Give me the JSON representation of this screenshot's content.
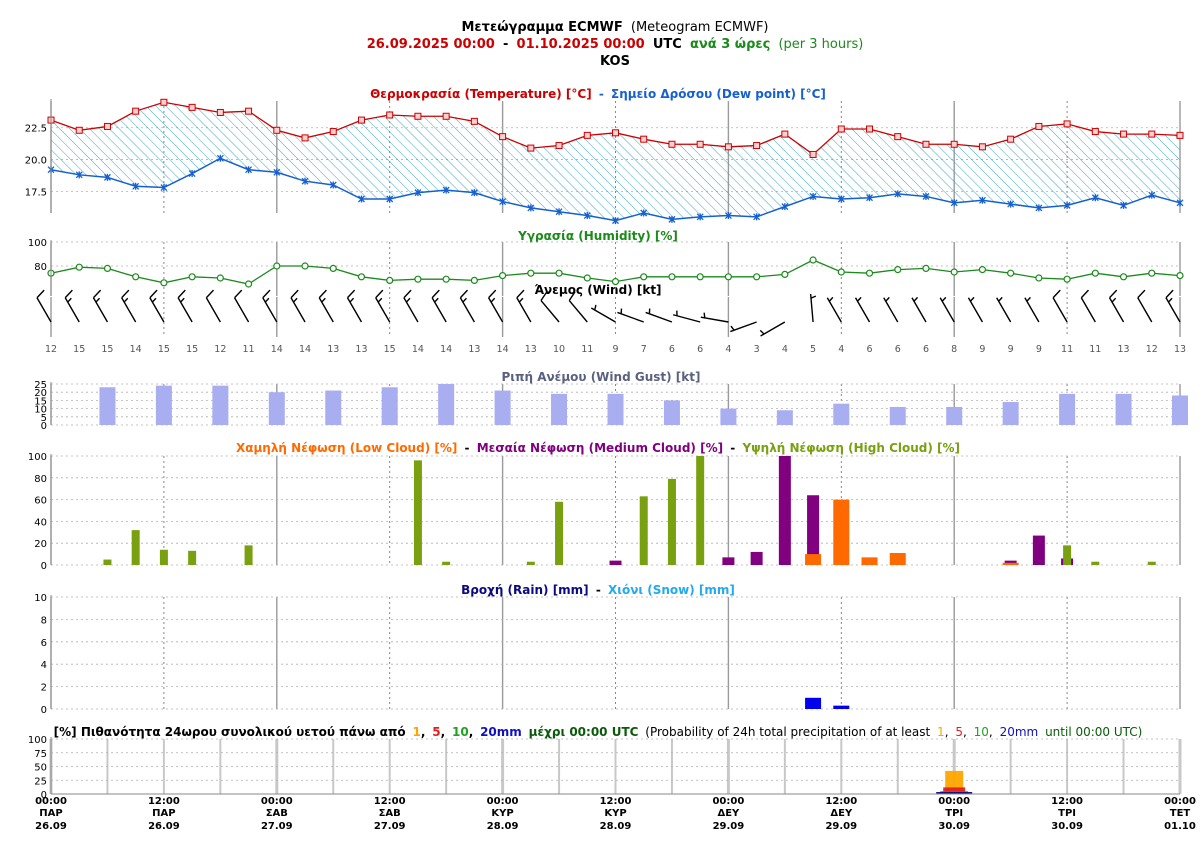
{
  "header": {
    "line1_bold": "Μετεώγραμμα ECMWF",
    "line1_normal": "(Meteogram ECMWF)",
    "line2_start": "26.09.2025 00:00",
    "line2_dash": "-",
    "line2_end": "01.10.2025 00:00",
    "line2_utc": "UTC",
    "line2_step_gr": "ανά 3 ώρες",
    "line2_step_en": "(per 3 hours)",
    "station": "KOS"
  },
  "colors": {
    "temp": "#cc0000",
    "dew": "#1560d0",
    "hum": "#1a8a1a",
    "gust": "#a8aef0",
    "low": "#ff6a00",
    "med": "#800080",
    "high": "#78a010",
    "rain": "#0000ee",
    "snow": "#22aaee",
    "grid": "#b0b0b0"
  },
  "chart_data": [
    {
      "type": "line",
      "name": "temperature_dewpoint",
      "title_gr_a": "Θερμοκρασία (Temperature) [°C]",
      "title_sep": "-",
      "title_gr_b": "Σημείο Δρόσου (Dew point) [°C]",
      "ylim": [
        15.8,
        24.6
      ],
      "yticks": [
        "22.5",
        "20.0",
        "17.5"
      ],
      "ytick_values": [
        22.5,
        20.0,
        17.5
      ],
      "series": [
        {
          "name": "Θερμοκρασία (Temperature) [°C]",
          "values": [
            23.1,
            22.3,
            22.6,
            23.8,
            24.5,
            24.1,
            23.7,
            23.8,
            22.3,
            21.7,
            22.2,
            23.1,
            23.5,
            23.4,
            23.4,
            23.0,
            21.8,
            20.9,
            21.1,
            21.9,
            22.1,
            21.6,
            21.2,
            21.2,
            21.0,
            21.1,
            22.0,
            20.4,
            22.4,
            22.4,
            21.8,
            21.2,
            21.2,
            21.0,
            21.6,
            22.6,
            22.8,
            22.2,
            22.0,
            22.0,
            21.9
          ]
        },
        {
          "name": "Σημείο Δρόσου (Dew point) [°C]",
          "values": [
            19.2,
            18.8,
            18.6,
            17.9,
            17.8,
            18.9,
            20.1,
            19.2,
            19.0,
            18.3,
            18.0,
            16.9,
            16.9,
            17.4,
            17.6,
            17.4,
            16.7,
            16.2,
            15.9,
            15.6,
            15.2,
            15.8,
            15.3,
            15.5,
            15.6,
            15.5,
            16.3,
            17.1,
            16.9,
            17.0,
            17.3,
            17.1,
            16.6,
            16.8,
            16.5,
            16.2,
            16.4,
            17.0,
            16.4,
            17.2,
            16.6
          ]
        }
      ]
    },
    {
      "type": "line",
      "name": "humidity",
      "title": "Υγρασία (Humidity) [%]",
      "ylim": [
        55,
        100
      ],
      "yticks": [
        "100",
        "80"
      ],
      "ytick_values": [
        100,
        80
      ],
      "values": [
        74,
        79,
        78,
        71,
        66,
        71,
        70,
        65,
        80,
        80,
        78,
        71,
        68,
        69,
        69,
        68,
        72,
        74,
        74,
        70,
        67,
        71,
        71,
        71,
        71,
        71,
        73,
        85,
        75,
        74,
        77,
        78,
        75,
        77,
        74,
        70,
        69,
        74,
        71,
        74,
        72
      ]
    },
    {
      "type": "wind",
      "title": "Άνεμος (Wind) [kt]",
      "speeds": [
        "12",
        "15",
        "15",
        "14",
        "15",
        "15",
        "12",
        "11",
        "14",
        "14",
        "13",
        "13",
        "15",
        "14",
        "14",
        "13",
        "14",
        "13",
        "10",
        "11",
        "9",
        "7",
        "6",
        "6",
        "4",
        "3",
        "4",
        "5",
        "4",
        "6",
        "6",
        "6",
        "8",
        "9",
        "9",
        "9",
        "11",
        "11",
        "13",
        "12",
        "13"
      ],
      "directions_deg": [
        330,
        330,
        330,
        330,
        330,
        330,
        330,
        330,
        330,
        330,
        330,
        330,
        330,
        330,
        330,
        330,
        330,
        330,
        320,
        320,
        300,
        290,
        290,
        285,
        280,
        250,
        240,
        355,
        330,
        330,
        330,
        330,
        330,
        330,
        330,
        330,
        330,
        330,
        330,
        330,
        330
      ]
    },
    {
      "type": "bar",
      "name": "wind_gust",
      "title": "Ριπή Ανέμου (Wind Gust) [kt]",
      "ylim": [
        0,
        25
      ],
      "yticks": [
        "25",
        "20",
        "15",
        "10",
        "5",
        "0"
      ],
      "ytick_values": [
        25,
        20,
        15,
        10,
        5,
        0
      ],
      "values": [
        null,
        23,
        24,
        24,
        20,
        21,
        23,
        25,
        21,
        19,
        19,
        15,
        10,
        9,
        13,
        11,
        11,
        14,
        19,
        19,
        18
      ]
    },
    {
      "type": "bar",
      "name": "clouds",
      "title_low": "Χαμηλή Νέφωση (Low Cloud) [%]",
      "title_med": "Μεσαία Νέφωση (Medium Cloud) [%]",
      "title_high": "Υψηλή Νέφωση (High Cloud) [%]",
      "title_sep": "-",
      "ylim": [
        0,
        100
      ],
      "yticks": [
        "100",
        "80",
        "60",
        "40",
        "20",
        "0"
      ],
      "ytick_values": [
        100,
        80,
        60,
        40,
        20,
        0
      ],
      "series": [
        {
          "name": "Χαμηλή Νέφωση (Low Cloud) [%]",
          "values": [
            0,
            0,
            0,
            0,
            0,
            0,
            0,
            0,
            0,
            0,
            0,
            0,
            0,
            0,
            0,
            0,
            0,
            0,
            0,
            0,
            0,
            0,
            0,
            0,
            0,
            0,
            0,
            10,
            60,
            7,
            11,
            0,
            0,
            0,
            2,
            0,
            0,
            0,
            0,
            0,
            0
          ]
        },
        {
          "name": "Μεσαία Νέφωση (Medium Cloud) [%]",
          "values": [
            0,
            0,
            0,
            0,
            0,
            0,
            0,
            0,
            0,
            0,
            0,
            0,
            0,
            0,
            0,
            0,
            0,
            0,
            0,
            0,
            4,
            0,
            0,
            0,
            7,
            12,
            100,
            64,
            34,
            0,
            0,
            0,
            0,
            0,
            4,
            27,
            6,
            0,
            0,
            0,
            0
          ]
        },
        {
          "name": "Υψηλή Νέφωση (High Cloud) [%]",
          "values": [
            0,
            0,
            5,
            32,
            14,
            13,
            0,
            18,
            0,
            0,
            0,
            0,
            0,
            96,
            3,
            0,
            0,
            3,
            58,
            0,
            0,
            63,
            79,
            100,
            0,
            0,
            0,
            0,
            0,
            0,
            0,
            0,
            0,
            0,
            0,
            0,
            18,
            3,
            0,
            3,
            0
          ]
        }
      ]
    },
    {
      "type": "bar",
      "name": "precipitation",
      "title_rain": "Βροχή (Rain) [mm]",
      "title_sep": "-",
      "title_snow": "Χιόνι (Snow) [mm]",
      "ylim": [
        0,
        10
      ],
      "yticks": [
        "10",
        "8",
        "6",
        "4",
        "2",
        "0"
      ],
      "ytick_values": [
        10,
        8,
        6,
        4,
        2,
        0
      ],
      "series": [
        {
          "name": "Βροχή (Rain) [mm]",
          "values": [
            0,
            0,
            0,
            0,
            0,
            0,
            0,
            0,
            0,
            0,
            0,
            0,
            0,
            0,
            0,
            0,
            0,
            0,
            0,
            0,
            0,
            0,
            0,
            0,
            0,
            0,
            0,
            1.0,
            0.3,
            0,
            0,
            0,
            0,
            0,
            0,
            0,
            0,
            0,
            0,
            0,
            0
          ]
        },
        {
          "name": "Χιόνι (Snow) [mm]",
          "values": [
            0,
            0,
            0,
            0,
            0,
            0,
            0,
            0,
            0,
            0,
            0,
            0,
            0,
            0,
            0,
            0,
            0,
            0,
            0,
            0,
            0,
            0,
            0,
            0,
            0,
            0,
            0,
            0,
            0,
            0,
            0,
            0,
            0,
            0,
            0,
            0,
            0,
            0,
            0,
            0,
            0
          ]
        }
      ]
    },
    {
      "type": "bar",
      "name": "precip_probability",
      "title_prefix": "[%] Πιθανότητα 24ωρου συνολικού υετού πάνω από",
      "title_thr1": "1",
      "title_thr2": "5",
      "title_thr3": "10",
      "title_thr4": "20mm",
      "title_until_gr": "μέχρι 00:00 UTC",
      "title_en_open": "(Probability of 24h total precipitation of at least",
      "title_en_until": "until 00:00 UTC)",
      "comma": ",",
      "ylim": [
        0,
        100
      ],
      "yticks": [
        "100",
        "75",
        "50",
        "25",
        "0"
      ],
      "ytick_values": [
        100,
        75,
        50,
        25,
        0
      ],
      "at_day": 4,
      "thresholds": [
        {
          "label": "1",
          "value": 42,
          "color": "#ffa500"
        },
        {
          "label": "5",
          "value": 12,
          "color": "#e02020"
        },
        {
          "label": "10",
          "value": 5,
          "color": "#20a020"
        },
        {
          "label": "20mm",
          "value": 2,
          "color": "#101080"
        }
      ]
    }
  ],
  "x_axis": {
    "wind_speed_row": "speeds",
    "labels": [
      {
        "time": "00:00",
        "day": "ΠΑΡ",
        "date": "26.09"
      },
      {
        "time": "12:00",
        "day": "ΠΑΡ",
        "date": "26.09"
      },
      {
        "time": "00:00",
        "day": "ΣΑΒ",
        "date": "27.09"
      },
      {
        "time": "12:00",
        "day": "ΣΑΒ",
        "date": "27.09"
      },
      {
        "time": "00:00",
        "day": "ΚΥΡ",
        "date": "28.09"
      },
      {
        "time": "12:00",
        "day": "ΚΥΡ",
        "date": "28.09"
      },
      {
        "time": "00:00",
        "day": "ΔΕΥ",
        "date": "29.09"
      },
      {
        "time": "12:00",
        "day": "ΔΕΥ",
        "date": "29.09"
      },
      {
        "time": "00:00",
        "day": "ΤΡΙ",
        "date": "30.09"
      },
      {
        "time": "12:00",
        "day": "ΤΡΙ",
        "date": "30.09"
      },
      {
        "time": "00:00",
        "day": "ΤΕΤ",
        "date": "01.10"
      }
    ]
  }
}
